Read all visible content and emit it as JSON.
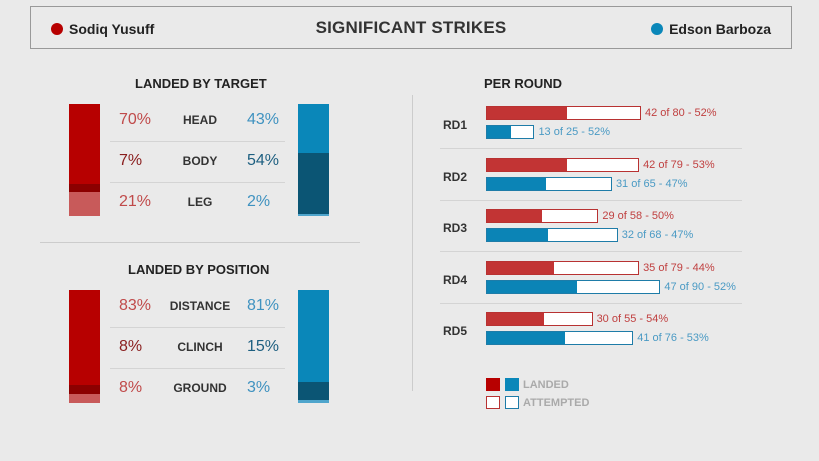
{
  "header": {
    "title": "SIGNIFICANT STRIKES",
    "red_fighter": "Sodiq Yusuff",
    "blue_fighter": "Edson Barboza"
  },
  "colors": {
    "red": "#b70000",
    "red_mid": "#8b0000",
    "red_light": "#c85a5a",
    "blue": "#0a87b9",
    "blue_dark": "#0b5574",
    "blue_light": "#4fa5cc"
  },
  "chart_data": [
    {
      "type": "bar",
      "title": "LANDED BY TARGET",
      "categories": [
        "HEAD",
        "BODY",
        "LEG"
      ],
      "series": [
        {
          "name": "Sodiq Yusuff",
          "values": [
            70,
            7,
            21
          ],
          "labels": [
            "70%",
            "7%",
            "21%"
          ]
        },
        {
          "name": "Edson Barboza",
          "values": [
            43,
            54,
            2
          ],
          "labels": [
            "43%",
            "54%",
            "2%"
          ]
        }
      ]
    },
    {
      "type": "bar",
      "title": "LANDED BY POSITION",
      "categories": [
        "DISTANCE",
        "CLINCH",
        "GROUND"
      ],
      "series": [
        {
          "name": "Sodiq Yusuff",
          "values": [
            83,
            8,
            8
          ],
          "labels": [
            "83%",
            "8%",
            "8%"
          ]
        },
        {
          "name": "Edson Barboza",
          "values": [
            81,
            15,
            3
          ],
          "labels": [
            "81%",
            "15%",
            "3%"
          ]
        }
      ]
    },
    {
      "type": "bar",
      "title": "PER ROUND",
      "categories": [
        "RD1",
        "RD2",
        "RD3",
        "RD4",
        "RD5"
      ],
      "series": [
        {
          "name": "Sodiq Yusuff",
          "landed": [
            42,
            42,
            29,
            35,
            30
          ],
          "attempted": [
            80,
            79,
            58,
            79,
            55
          ],
          "labels": [
            "42 of 80 - 52%",
            "42 of 79 - 53%",
            "29 of 58 - 50%",
            "35 of 79 - 44%",
            "30 of 55 - 54%"
          ]
        },
        {
          "name": "Edson Barboza",
          "landed": [
            13,
            31,
            32,
            47,
            41
          ],
          "attempted": [
            25,
            65,
            68,
            90,
            76
          ],
          "labels": [
            "13 of 25 - 52%",
            "31 of 65 - 47%",
            "32 of 68 - 47%",
            "47 of 90 - 52%",
            "41 of 76 - 53%"
          ]
        }
      ],
      "legend": [
        "LANDED",
        "ATTEMPTED"
      ]
    }
  ]
}
